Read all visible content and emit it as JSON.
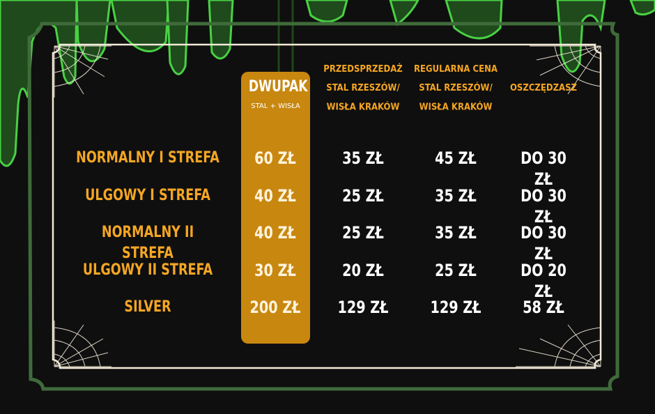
{
  "columns": {
    "dwupak_title": "DWUPAK",
    "dwupak_sub": "STAL + WISŁA",
    "presale": [
      "PRZEDSPRZEDAŻ",
      "STAL RZESZÓW/",
      "WISŁA KRAKÓW"
    ],
    "regular": [
      "REGULARNA CENA",
      "STAL RZESZÓW/",
      "WISŁA KRAKÓW"
    ],
    "savings": "OSZCZĘDZASZ"
  },
  "rows": [
    {
      "label": "NORMALNY I STREFA",
      "dwupak": "60 ZŁ",
      "presale": "35 ZŁ",
      "regular": "45 ZŁ",
      "savings": "DO 30 ZŁ"
    },
    {
      "label": "ULGOWY I STREFA",
      "dwupak": "40 ZŁ",
      "presale": "25 ZŁ",
      "regular": "35 ZŁ",
      "savings": "DO 30 ZŁ"
    },
    {
      "label": "NORMALNY II STREFA",
      "dwupak": "40 ZŁ",
      "presale": "25 ZŁ",
      "regular": "35 ZŁ",
      "savings": "DO 30 ZŁ"
    },
    {
      "label": "ULGOWY II STREFA",
      "dwupak": "30 ZŁ",
      "presale": "20 ZŁ",
      "regular": "25 ZŁ",
      "savings": "DO 20 ZŁ"
    },
    {
      "label": "SILVER",
      "dwupak": "200 ZŁ",
      "presale": "129 ZŁ",
      "regular": "129 ZŁ",
      "savings": "58 ZŁ"
    }
  ],
  "colors": {
    "background": "#0f0f0f",
    "slime": "#3fbf3a",
    "frame_outer": "#3f6b3a",
    "frame_inner": "#f3ead8",
    "accent": "#f5a623",
    "highlight_column": "#c8870f",
    "value_text": "#ffffff"
  },
  "icons": [
    "slime-drips",
    "cobweb-top-left",
    "cobweb-top-right",
    "cobweb-bottom-left",
    "cobweb-bottom-right"
  ]
}
